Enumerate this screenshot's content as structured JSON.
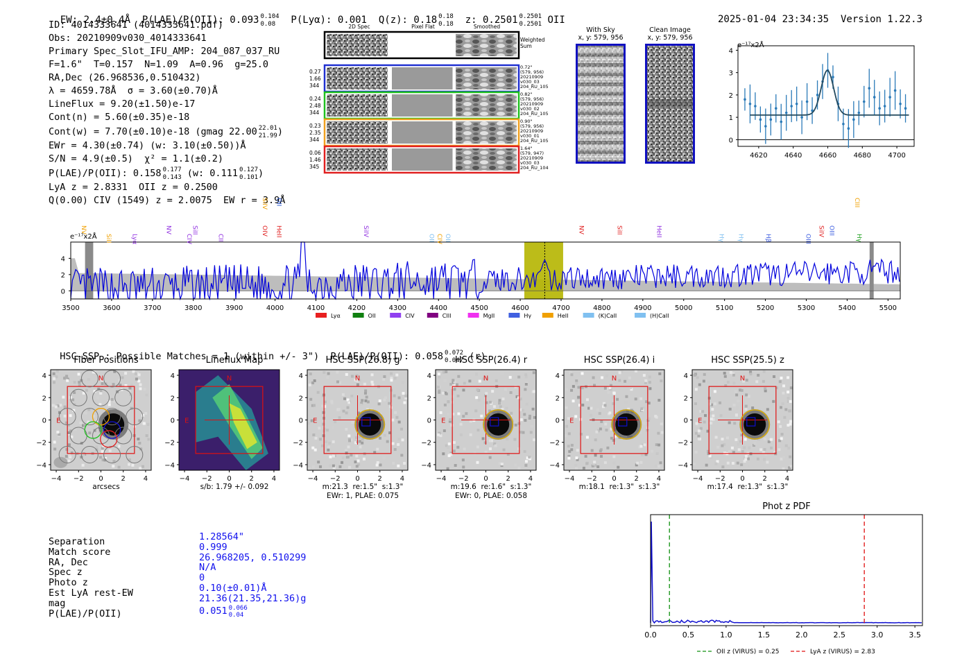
{
  "header": {
    "ew": "EW: 2.4±0.4Å",
    "plae": "P(LAE)/P(OII): 0.093",
    "plae_hi": "0.104",
    "plae_lo": "0.08",
    "plya": "P(Lyα): 0.001",
    "qz": "Q(z): 0.18",
    "qz_hi": "0.18",
    "qz_lo": "0.18",
    "z": "z: 0.2501",
    "z_hi": "0.2501",
    "z_lo": "0.2501",
    "line": "OII",
    "timestamp": "2025-01-04 23:34:35",
    "version": "Version 1.22.3"
  },
  "info": {
    "lines": [
      "ID: 4014333641 (4014333641.pdf)",
      "Obs: 20210909v030_4014333641",
      "Primary Spec_Slot_IFU_AMP: 204_087_037_RU",
      "F=1.6\"  T=0.157  N=1.09  A=0.96  g=25.0",
      "RA,Dec (26.968536,0.510432)",
      "λ = 4659.78Å  σ = 3.60(±0.70)Å",
      "LineFlux = 9.20(±1.50)e-17",
      "Cont(n) = 5.60(±0.35)e-18",
      "Cont(w) = 7.70(±0.10)e-18 (gmag 22.00",
      "EWr = 4.30(±0.74) (w: 3.10(±0.50))Å",
      "S/N = 4.9(±0.5)  χ² = 1.1(±0.2)",
      "P(LAE)/P(OII): 0.158",
      "LyA z = 2.8331  OII z = 0.2500",
      "Q(0.00) CIV (1549) z = 2.0075  EW r = 3.9Å"
    ],
    "gmag_hi": "22.01",
    "gmag_lo": "21.99",
    "plae_hi": "0.177",
    "plae_lo": "0.143",
    "plae_w": "(w: 0.111",
    "plae_w_hi": "0.127",
    "plae_w_lo": "0.101"
  },
  "cutouts": {
    "col_2d": "2D Spec",
    "col_flat": "Pixel Flat",
    "col_smooth": "Smoothed",
    "weighted_label": "Weighted\nSum",
    "rows": [
      {
        "left": [
          "0.27",
          "1.66",
          "344"
        ],
        "right": [
          "0.72\"",
          "(579, 956)",
          "20210909",
          "v030_03",
          "204_RU_105"
        ],
        "color": "#2030d0"
      },
      {
        "left": [
          "0.24",
          "2.48",
          "344"
        ],
        "right": [
          "0.82\"",
          "(579, 956)",
          "20210909",
          "v030_02",
          "204_RU_105"
        ],
        "color": "#20c020"
      },
      {
        "left": [
          "0.23",
          "2.35",
          "344"
        ],
        "right": [
          "0.90\"",
          "(579, 956)",
          "20210909",
          "v030_01",
          "204_RU_105"
        ],
        "color": "#f0a020"
      },
      {
        "left": [
          "0.06",
          "1.46",
          "345"
        ],
        "right": [
          "1.64\"",
          "(579, 947)",
          "20210909",
          "v030_03",
          "204_RU_104"
        ],
        "color": "#e02020"
      }
    ],
    "with_sky_title": "With Sky",
    "with_sky_xy": "x, y: 579, 956",
    "clean_title": "Clean Image",
    "clean_xy": "x, y: 579, 956"
  },
  "line_fit": {
    "ylabel": "e⁻¹⁷x2Å",
    "chart_data": {
      "type": "scatter",
      "x": [
        4612,
        4615,
        4618,
        4621,
        4624,
        4627,
        4630,
        4633,
        4636,
        4639,
        4642,
        4645,
        4648,
        4651,
        4654,
        4657,
        4660,
        4663,
        4666,
        4669,
        4672,
        4675,
        4678,
        4681,
        4684,
        4687,
        4690,
        4693,
        4696,
        4699,
        4702,
        4705
      ],
      "y": [
        1.8,
        1.6,
        1.5,
        0.9,
        0.6,
        0.9,
        1.4,
        0.8,
        1.2,
        1.5,
        1.6,
        1.0,
        1.7,
        1.3,
        2.0,
        2.6,
        3.1,
        2.8,
        1.6,
        0.7,
        0.5,
        0.9,
        1.2,
        1.7,
        2.3,
        1.9,
        1.4,
        1.5,
        1.9,
        2.2,
        1.6,
        1.4
      ],
      "fit_center": 4659.78,
      "fit_sigma": 3.6,
      "fit_cont": 1.1,
      "fit_amp": 2.0,
      "xticks": [
        "4620",
        "4640",
        "4660",
        "4680",
        "4700"
      ],
      "yticks": [
        "0",
        "1",
        "2",
        "3",
        "4"
      ],
      "xlim": [
        4608,
        4710
      ],
      "ylim": [
        -0.3,
        4.2
      ]
    }
  },
  "spectrum": {
    "ylabel": "e⁻¹⁷x2Å",
    "xticks": [
      "3500",
      "3600",
      "3700",
      "3800",
      "3900",
      "4000",
      "4100",
      "4200",
      "4300",
      "4400",
      "4500",
      "4600",
      "4700",
      "4800",
      "4900",
      "5000",
      "5100",
      "5200",
      "5300",
      "5400",
      "5500"
    ],
    "yticks": [
      "0",
      "2",
      "4"
    ],
    "xlim": [
      3500,
      5530
    ],
    "ylim": [
      -1,
      6
    ],
    "highlight": [
      4610,
      4705
    ],
    "line_marker": 4660,
    "line_labels": [
      {
        "name": "NV",
        "x": 3527,
        "color": "#f0a000",
        "row": 2
      },
      {
        "name": "SiII",
        "x": 3588,
        "color": "#f0a000",
        "row": 3
      },
      {
        "name": "Lyα",
        "x": 3652,
        "color": "#9030e0",
        "row": 3
      },
      {
        "name": "NV",
        "x": 3735,
        "color": "#9030e0",
        "row": 2
      },
      {
        "name": "CIV",
        "x": 3785,
        "color": "#9030e0",
        "row": 3
      },
      {
        "name": "SiII",
        "x": 3800,
        "color": "#9030e0",
        "row": 2
      },
      {
        "name": "CII",
        "x": 3862,
        "color": "#9030e0",
        "row": 3
      },
      {
        "name": "SiIV",
        "x": 3970,
        "color": "#f0a000",
        "row": 0
      },
      {
        "name": "OIV",
        "x": 3970,
        "color": "#e02020",
        "row": 2
      },
      {
        "name": "OII",
        "x": 4005,
        "color": "#2050d0",
        "row": 0
      },
      {
        "name": "HeII",
        "x": 4005,
        "color": "#e02020",
        "row": 2
      },
      {
        "name": "SiIV",
        "x": 4218,
        "color": "#9030e0",
        "row": 2
      },
      {
        "name": "OII",
        "x": 4378,
        "color": "#80c0f0",
        "row": 3
      },
      {
        "name": "CIV",
        "x": 4398,
        "color": "#f0a000",
        "row": 3
      },
      {
        "name": "OII",
        "x": 4418,
        "color": "#80c0f0",
        "row": 3
      },
      {
        "name": "NV",
        "x": 4745,
        "color": "#e02020",
        "row": 2
      },
      {
        "name": "SiII",
        "x": 4838,
        "color": "#e02020",
        "row": 2
      },
      {
        "name": "HeII",
        "x": 4935,
        "color": "#9030e0",
        "row": 2
      },
      {
        "name": "Hγ",
        "x": 5088,
        "color": "#80c0f0",
        "row": 3
      },
      {
        "name": "Hγ",
        "x": 5135,
        "color": "#80c0f0",
        "row": 3
      },
      {
        "name": "Hβ",
        "x": 5202,
        "color": "#4060e0",
        "row": 3
      },
      {
        "name": "OIII",
        "x": 5300,
        "color": "#4060e0",
        "row": 3
      },
      {
        "name": "SiIV",
        "x": 5332,
        "color": "#e02020",
        "row": 2
      },
      {
        "name": "OIII",
        "x": 5358,
        "color": "#4060e0",
        "row": 2
      },
      {
        "name": "CIII",
        "x": 5420,
        "color": "#f0a000",
        "row": 0
      },
      {
        "name": "Hγ",
        "x": 5425,
        "color": "#20a020",
        "row": 3
      }
    ],
    "legend": [
      {
        "label": "Lyα",
        "color": "#e82020"
      },
      {
        "label": "OII",
        "color": "#108010"
      },
      {
        "label": "CIV",
        "color": "#9040f0"
      },
      {
        "label": "CIII",
        "color": "#800080"
      },
      {
        "label": "MgII",
        "color": "#f030f0"
      },
      {
        "label": "Hγ",
        "color": "#4060e0"
      },
      {
        "label": "HeII",
        "color": "#f0a000"
      },
      {
        "label": "(K)CaII",
        "color": "#80c0f0"
      },
      {
        "label": "(H)CaII",
        "color": "#80c0f0"
      }
    ]
  },
  "hsc": {
    "header": "HSC-SSP : Possible Matches = 1 (within +/- 3\")  P(LAE)/P(OII): 0.058",
    "header_hi": "0.072",
    "header_lo": "0.047",
    "header_band": "(r)",
    "panels": [
      {
        "title": "Fiber Positions",
        "cap1": "arcsecs",
        "cap2": ""
      },
      {
        "title": "Lineflux Map",
        "cap1": "s/b: 1.79 +/- 0.092",
        "cap2": ""
      },
      {
        "title": "HSC SSP(26.8) g",
        "cap1": "m:21.3  re:1.5\"  s:1.3\"",
        "cap2": "EWr: 1, PLAE: 0.075"
      },
      {
        "title": "HSC SSP(26.4) r",
        "cap1": "m:19.6  re:1.6\"  s:1.3\"",
        "cap2": "EWr: 0, PLAE: 0.058"
      },
      {
        "title": "HSC SSP(26.4) i",
        "cap1": "m:18.1  re:1.3\"  s:1.3\"",
        "cap2": ""
      },
      {
        "title": "HSC SSP(25.5) z",
        "cap1": "m:17.4  re:1.3\"  s:1.3\"",
        "cap2": ""
      }
    ],
    "ticks": [
      "−4",
      "−2",
      "0",
      "2",
      "4"
    ],
    "N": "N",
    "E": "E"
  },
  "match": {
    "labels": [
      "Separation",
      "Match score",
      "RA, Dec",
      "Spec z",
      "Photo z",
      "Est LyA rest-EW",
      "mag",
      "P(LAE)/P(OII)"
    ],
    "values": [
      "1.28564\"",
      "0.999",
      "26.968205, 0.510299",
      "N/A",
      "0",
      "0.10(±0.01)Å",
      "21.36(21.35,21.36)g",
      "0.051"
    ],
    "plae_hi": "0.066",
    "plae_lo": "0.04"
  },
  "photz": {
    "title": "Phot z PDF",
    "xticks": [
      "0.0",
      "0.5",
      "1.0",
      "1.5",
      "2.0",
      "2.5",
      "3.0",
      "3.5"
    ],
    "xlim": [
      0,
      3.6
    ],
    "oii_z": 0.25,
    "lya_z": 2.83,
    "legend_oii": "OII z (VIRUS) = 0.25",
    "legend_lya": "LyA z (VIRUS) = 2.83"
  }
}
